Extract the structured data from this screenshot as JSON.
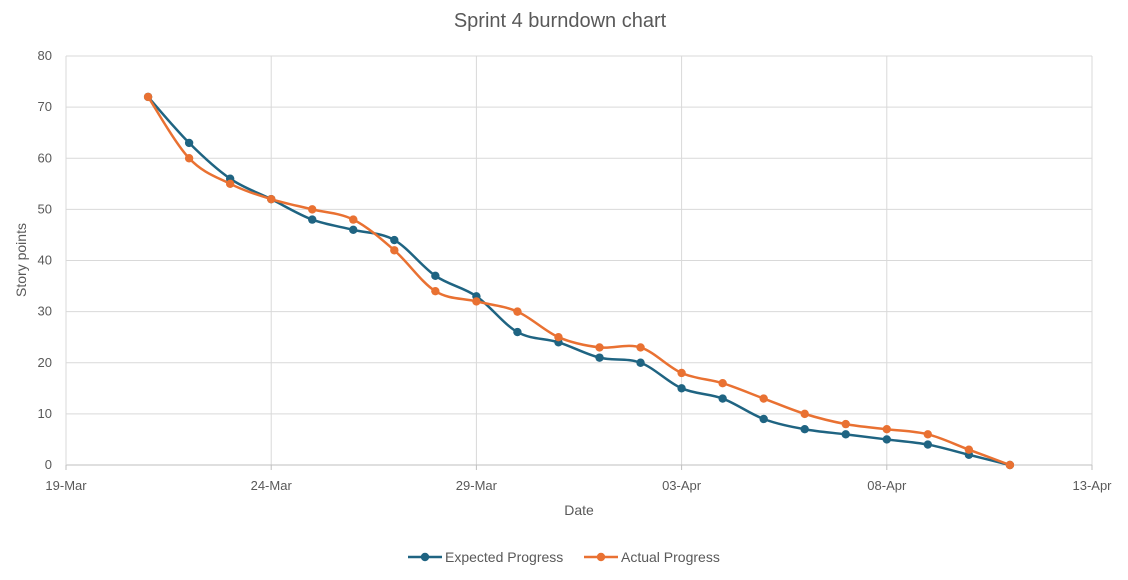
{
  "chart_data": {
    "type": "line",
    "title": "Sprint 4 burndown chart",
    "xlabel": "Date",
    "ylabel": "Story points",
    "xlim": [
      "2024-03-19",
      "2024-04-13"
    ],
    "ylim": [
      0,
      80
    ],
    "x_ticks": [
      "19-Mar",
      "24-Mar",
      "29-Mar",
      "03-Apr",
      "08-Apr",
      "13-Apr"
    ],
    "y_ticks": [
      0,
      10,
      20,
      30,
      40,
      50,
      60,
      70,
      80
    ],
    "grid": true,
    "legend_position": "bottom",
    "x": [
      "2024-03-21",
      "2024-03-22",
      "2024-03-23",
      "2024-03-24",
      "2024-03-25",
      "2024-03-26",
      "2024-03-27",
      "2024-03-28",
      "2024-03-29",
      "2024-03-30",
      "2024-03-31",
      "2024-04-01",
      "2024-04-02",
      "2024-04-03",
      "2024-04-04",
      "2024-04-05",
      "2024-04-06",
      "2024-04-07",
      "2024-04-08",
      "2024-04-09",
      "2024-04-10",
      "2024-04-11"
    ],
    "series": [
      {
        "name": "Expected Progress",
        "color": "#1f6482",
        "values": [
          72,
          63,
          56,
          52,
          48,
          46,
          44,
          37,
          33,
          26,
          24,
          21,
          20,
          15,
          13,
          9,
          7,
          6,
          5,
          4,
          2,
          0
        ]
      },
      {
        "name": "Actual Progress",
        "color": "#e97132",
        "values": [
          72,
          60,
          55,
          52,
          50,
          48,
          42,
          34,
          32,
          30,
          25,
          23,
          23,
          18,
          16,
          13,
          10,
          8,
          7,
          6,
          3,
          0
        ]
      }
    ]
  }
}
